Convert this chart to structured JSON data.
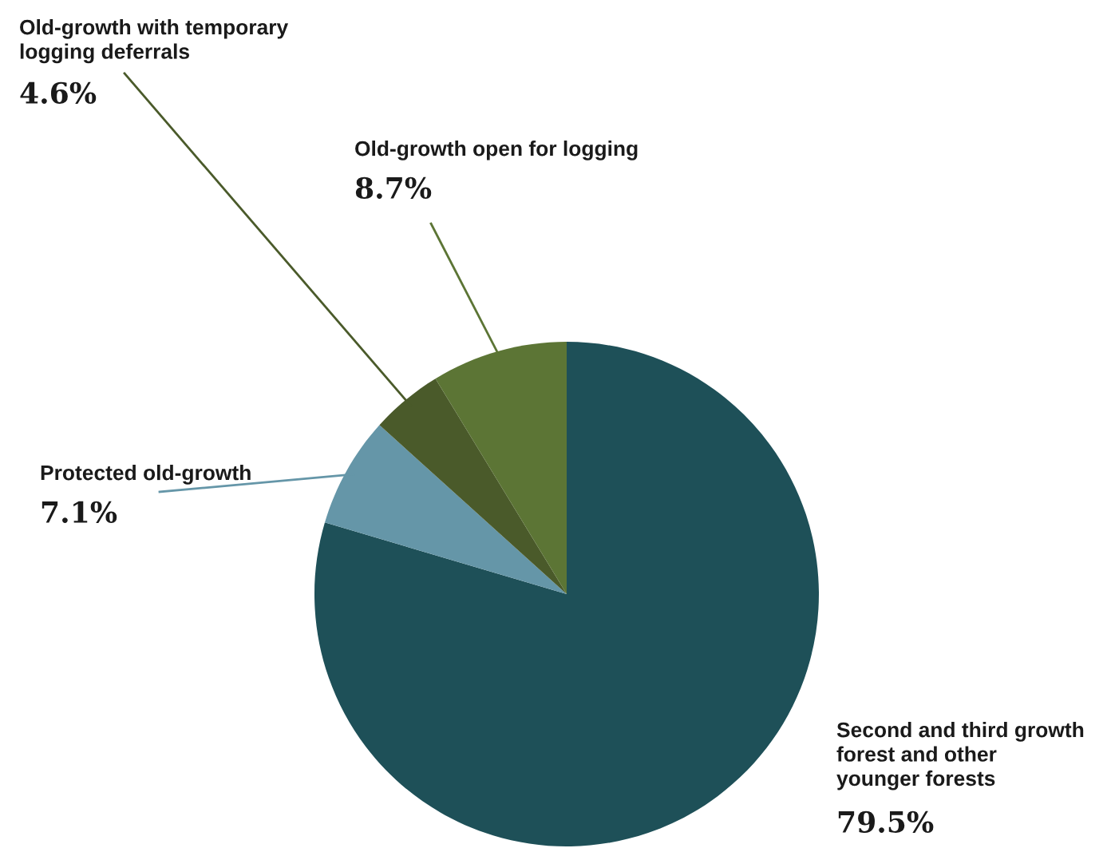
{
  "chart_data": {
    "type": "pie",
    "categories": [
      "Second and third growth\nforest and other\nyounger forests",
      "Protected old-growth",
      "Old-growth with temporary\nlogging deferrals",
      "Old-growth open for logging"
    ],
    "values": [
      79.5,
      7.1,
      4.6,
      8.7
    ],
    "value_labels": [
      "79.5%",
      "7.1%",
      "4.6%",
      "8.7%"
    ],
    "colors": [
      "#1e5058",
      "#6596a8",
      "#4a5a2a",
      "#5c7535"
    ]
  }
}
